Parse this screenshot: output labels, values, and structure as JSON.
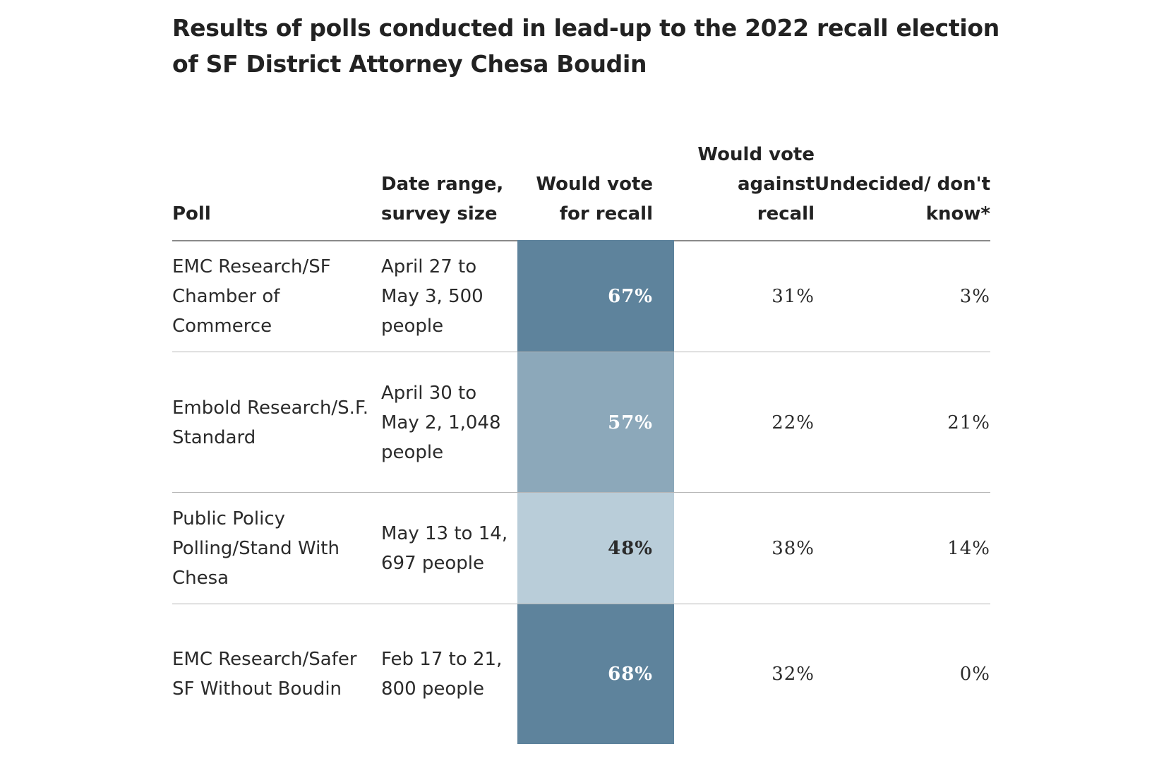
{
  "title": "Results of polls conducted in lead-up to the 2022 recall election of SF District Attorney Chesa Boudin",
  "columns": {
    "poll": "Poll",
    "date": "Date range, survey size",
    "for_recall": "Would vote for recall",
    "against_recall": "Would vote against recall",
    "undecided": "Undecided/ don't know*"
  },
  "colors": {
    "high": "#5e839c",
    "mid": "#8ca8ba",
    "low": "#b9cdd9",
    "text_on_dark": "#ffffff",
    "text_on_light": "#2b2b2b"
  },
  "chart_data": {
    "type": "table",
    "title": "Results of polls conducted in lead-up to the 2022 recall election of SF District Attorney Chesa Boudin",
    "columns": [
      "Poll",
      "Date range, survey size",
      "Would vote for recall",
      "Would vote against recall",
      "Undecided/ don't know*"
    ],
    "rows": [
      {
        "poll": "EMC Research/SF Chamber of Commerce",
        "date": "April 27 to May 3, 500 people",
        "for_recall": "67%",
        "against_recall": "31%",
        "undecided": "3%",
        "for_recall_value": 67,
        "shade": "high"
      },
      {
        "poll": "Embold Research/S.F. Standard",
        "date": "April 30 to May 2, 1,048 people",
        "for_recall": "57%",
        "against_recall": "22%",
        "undecided": "21%",
        "for_recall_value": 57,
        "shade": "mid"
      },
      {
        "poll": "Public Policy Polling/Stand With Chesa",
        "date": "May 13 to 14, 697 people",
        "for_recall": "48%",
        "against_recall": "38%",
        "undecided": "14%",
        "for_recall_value": 48,
        "shade": "low"
      },
      {
        "poll": "EMC Research/Safer SF Without Boudin",
        "date": "Feb 17 to 21, 800 people",
        "for_recall": "68%",
        "against_recall": "32%",
        "undecided": "0%",
        "for_recall_value": 68,
        "shade": "high"
      }
    ]
  }
}
